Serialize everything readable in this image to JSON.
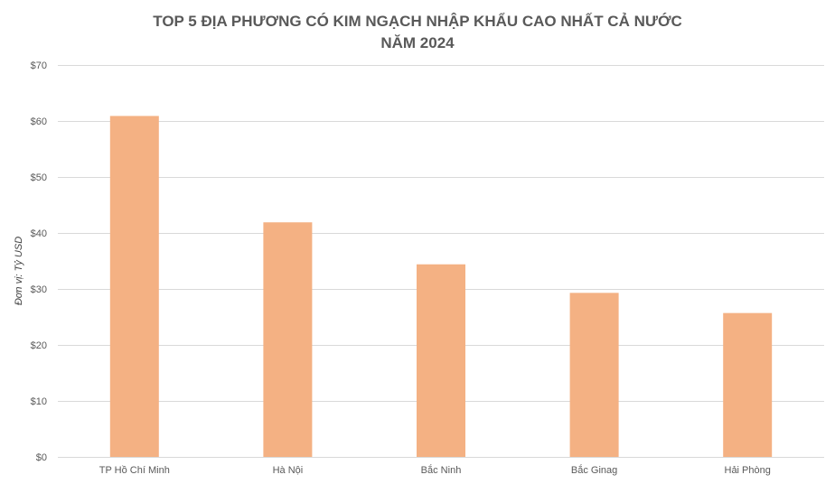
{
  "chart_data": {
    "type": "bar",
    "title_lines": [
      "TOP 5 ĐỊA PHƯƠNG CÓ KIM NGẠCH NHẬP KHẨU CAO NHẤT CẢ NƯỚC",
      "NĂM 2024"
    ],
    "ylabel": "Đơn vị: Tỷ USD",
    "xlabel": "",
    "categories": [
      "TP Hồ Chí Minh",
      "Hà Nội",
      "Bắc Ninh",
      "Bắc Ginag",
      "Hải Phòng"
    ],
    "values": [
      60.9,
      41.9,
      34.4,
      29.3,
      25.7
    ],
    "ylim": [
      0,
      70
    ],
    "yticks": [
      0,
      10,
      20,
      30,
      40,
      50,
      60,
      70
    ],
    "ytick_labels": [
      "$0",
      "$10",
      "$20",
      "$30",
      "$40",
      "$50",
      "$60",
      "$70"
    ],
    "grid": true,
    "legend": "none",
    "colors": {
      "bar": "#F4B183",
      "grid": "#D9D9D9",
      "text": "#595959"
    }
  }
}
